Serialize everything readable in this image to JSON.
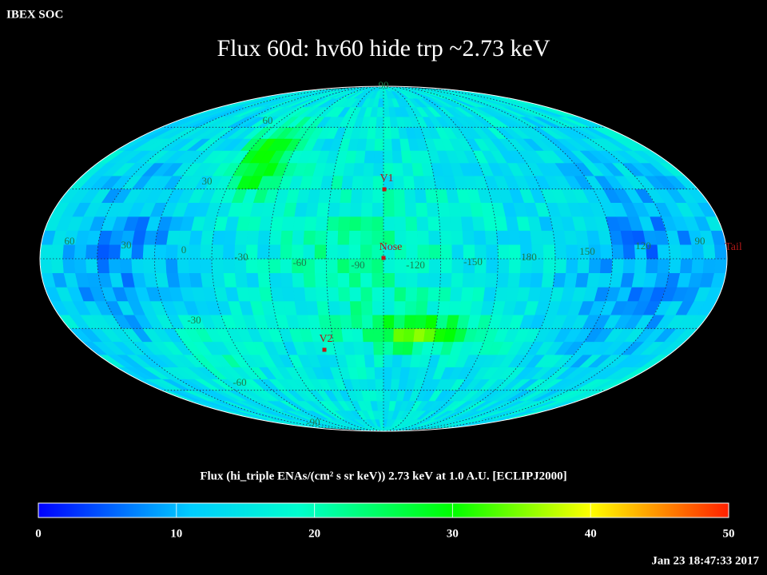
{
  "header": {
    "source": "IBEX SOC",
    "title": "Flux   60d: hv60 hide trp ~2.73 keV",
    "timestamp": "Jan 23 18:47:33 2017"
  },
  "map": {
    "latitude_labels": [
      "90",
      "60",
      "30",
      "-30",
      "-60",
      "-90"
    ],
    "longitude_labels": [
      "60",
      "30",
      "0",
      "-30",
      "-60",
      "-90",
      "-120",
      "-150",
      "180",
      "150",
      "120",
      "90"
    ],
    "markers": [
      {
        "label": "V1"
      },
      {
        "label": "Nose"
      },
      {
        "label": "V2"
      },
      {
        "label": "Tail"
      }
    ]
  },
  "colorbar": {
    "caption": "Flux (hi_triple ENAs/(cm² s sr keV))  2.73 keV at 1.0 A.U. [ECLIPJ2000]",
    "range": [
      0,
      50
    ],
    "ticks": [
      0,
      10,
      20,
      30,
      40,
      50
    ]
  }
}
